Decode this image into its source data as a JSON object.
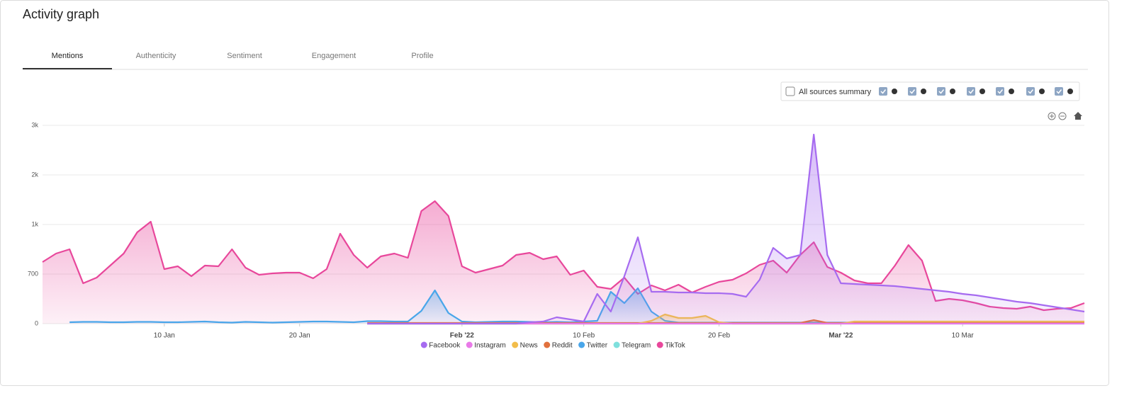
{
  "header": {
    "title": "Activity graph"
  },
  "tabs": [
    "Mentions",
    "Authenticity",
    "Sentiment",
    "Engagement",
    "Profile"
  ],
  "sources": {
    "label": "All sources summary"
  },
  "chart_data": {
    "type": "area",
    "x": [
      "2022-01-01",
      "2022-01-02",
      "2022-01-03",
      "2022-01-04",
      "2022-01-05",
      "2022-01-06",
      "2022-01-07",
      "2022-01-08",
      "2022-01-09",
      "2022-01-10",
      "2022-01-11",
      "2022-01-12",
      "2022-01-13",
      "2022-01-14",
      "2022-01-15",
      "2022-01-16",
      "2022-01-17",
      "2022-01-18",
      "2022-01-19",
      "2022-01-20",
      "2022-01-21",
      "2022-01-22",
      "2022-01-23",
      "2022-01-24",
      "2022-01-25",
      "2022-01-26",
      "2022-01-27",
      "2022-01-28",
      "2022-01-29",
      "2022-01-30",
      "2022-01-31",
      "2022-02-01",
      "2022-02-02",
      "2022-02-03",
      "2022-02-04",
      "2022-02-05",
      "2022-02-06",
      "2022-02-07",
      "2022-02-08",
      "2022-02-09",
      "2022-02-10",
      "2022-02-11",
      "2022-02-12",
      "2022-02-13",
      "2022-02-14",
      "2022-02-15",
      "2022-02-16",
      "2022-02-17",
      "2022-02-18",
      "2022-02-19",
      "2022-02-20",
      "2022-02-21",
      "2022-02-22",
      "2022-02-23",
      "2022-02-24",
      "2022-02-25",
      "2022-02-26",
      "2022-02-27",
      "2022-02-28",
      "2022-03-01",
      "2022-03-02",
      "2022-03-03",
      "2022-03-04",
      "2022-03-05",
      "2022-03-06",
      "2022-03-07",
      "2022-03-08",
      "2022-03-09",
      "2022-03-10",
      "2022-03-11",
      "2022-03-12",
      "2022-03-13",
      "2022-03-14",
      "2022-03-15",
      "2022-03-16",
      "2022-03-17",
      "2022-03-18",
      "2022-03-19"
    ],
    "xlim": [
      "2022-01-01",
      "2022-03-19"
    ],
    "xticks": [
      {
        "value": "2022-01-10",
        "label": "10 Jan"
      },
      {
        "value": "2022-01-20",
        "label": "20 Jan"
      },
      {
        "value": "2022-02-01",
        "label": "Feb '22"
      },
      {
        "value": "2022-02-10",
        "label": "10 Feb"
      },
      {
        "value": "2022-02-20",
        "label": "20 Feb"
      },
      {
        "value": "2022-03-01",
        "label": "Mar '22"
      },
      {
        "value": "2022-03-10",
        "label": "10 Mar"
      }
    ],
    "ylim": [
      0,
      2800
    ],
    "yticks": [
      0,
      700,
      {
        "value": 1400,
        "label": "1k"
      },
      {
        "value": 2100,
        "label": "2k"
      },
      {
        "value": 2800,
        "label": "3k"
      }
    ],
    "grid": true,
    "series": [
      {
        "name": "Facebook",
        "color": "#a66bf0",
        "values": [
          null,
          null,
          null,
          null,
          null,
          null,
          null,
          null,
          null,
          null,
          null,
          null,
          null,
          null,
          null,
          null,
          null,
          null,
          null,
          null,
          null,
          null,
          null,
          null,
          0,
          0,
          0,
          0,
          0,
          0,
          0,
          0,
          0,
          0,
          0,
          0,
          20,
          30,
          90,
          60,
          30,
          420,
          170,
          670,
          1220,
          450,
          450,
          440,
          440,
          430,
          430,
          420,
          380,
          620,
          1070,
          920,
          970,
          2670,
          970,
          570,
          560,
          550,
          540,
          530,
          510,
          490,
          470,
          450,
          420,
          400,
          370,
          340,
          310,
          290,
          260,
          230,
          200,
          170
        ]
      },
      {
        "name": "Instagram",
        "color": "#e97ae8",
        "values": [
          null,
          null,
          null,
          null,
          null,
          null,
          null,
          null,
          null,
          null,
          null,
          null,
          null,
          null,
          null,
          null,
          null,
          null,
          null,
          null,
          null,
          null,
          null,
          null,
          0,
          0,
          0,
          0,
          0,
          0,
          0,
          0,
          0,
          0,
          0,
          0,
          0,
          0,
          0,
          0,
          0,
          0,
          0,
          0,
          0,
          0,
          0,
          0,
          0,
          0,
          0,
          0,
          0,
          0,
          0,
          0,
          0,
          0,
          0,
          0,
          0,
          0,
          0,
          0,
          0,
          0,
          0,
          0,
          0,
          0,
          0,
          0,
          0,
          0,
          0,
          0,
          0,
          0
        ]
      },
      {
        "name": "News",
        "color": "#f2bd4b",
        "values": [
          null,
          null,
          null,
          null,
          null,
          null,
          null,
          null,
          null,
          null,
          null,
          null,
          null,
          null,
          null,
          null,
          null,
          null,
          null,
          null,
          null,
          null,
          null,
          null,
          0,
          0,
          0,
          0,
          0,
          0,
          0,
          0,
          0,
          0,
          0,
          0,
          0,
          0,
          0,
          0,
          0,
          0,
          0,
          0,
          0,
          40,
          130,
          80,
          80,
          110,
          20,
          0,
          0,
          0,
          0,
          0,
          0,
          0,
          0,
          0,
          30,
          30,
          30,
          30,
          30,
          30,
          30,
          30,
          30,
          30,
          30,
          30,
          30,
          30,
          30,
          30,
          30,
          30
        ]
      },
      {
        "name": "Reddit",
        "color": "#e1713d",
        "values": [
          null,
          null,
          null,
          null,
          null,
          null,
          null,
          null,
          null,
          null,
          null,
          null,
          null,
          null,
          null,
          null,
          null,
          null,
          null,
          null,
          null,
          null,
          null,
          null,
          10,
          10,
          10,
          10,
          10,
          10,
          10,
          10,
          10,
          10,
          10,
          10,
          10,
          10,
          10,
          10,
          10,
          10,
          10,
          10,
          10,
          10,
          10,
          10,
          10,
          10,
          10,
          10,
          10,
          10,
          10,
          10,
          10,
          50,
          10,
          10,
          10,
          10,
          10,
          10,
          10,
          10,
          10,
          10,
          10,
          10,
          10,
          10,
          10,
          10,
          10,
          10,
          10,
          10
        ]
      },
      {
        "name": "Twitter",
        "color": "#49a6ea",
        "values": [
          null,
          null,
          20,
          25,
          25,
          20,
          20,
          25,
          25,
          20,
          20,
          25,
          30,
          20,
          15,
          25,
          20,
          15,
          20,
          25,
          30,
          30,
          25,
          20,
          35,
          35,
          30,
          30,
          180,
          470,
          150,
          30,
          20,
          25,
          30,
          30,
          25,
          20,
          25,
          20,
          30,
          40,
          450,
          290,
          500,
          170,
          40,
          15,
          15,
          15,
          15,
          15,
          15,
          15,
          15,
          15,
          15,
          15,
          15,
          15,
          15,
          15,
          15,
          15,
          15,
          15,
          15,
          15,
          15,
          15,
          15,
          15,
          15,
          15,
          15,
          15,
          15,
          15
        ]
      },
      {
        "name": "Telegram",
        "color": "#7fe0dd",
        "values": [
          null,
          null,
          null,
          null,
          null,
          null,
          null,
          null,
          null,
          null,
          null,
          null,
          null,
          null,
          null,
          null,
          null,
          null,
          null,
          null,
          null,
          null,
          null,
          null,
          0,
          0,
          0,
          0,
          0,
          0,
          0,
          0,
          0,
          0,
          0,
          0,
          0,
          0,
          0,
          0,
          0,
          0,
          0,
          0,
          0,
          0,
          0,
          0,
          0,
          0,
          0,
          0,
          0,
          0,
          0,
          0,
          0,
          0,
          0,
          0,
          0,
          0,
          0,
          0,
          0,
          0,
          0,
          0,
          0,
          0,
          0,
          0,
          0,
          0,
          0,
          0,
          0,
          0
        ]
      },
      {
        "name": "TikTok",
        "color": "#e8479b",
        "values": [
          870,
          990,
          1050,
          570,
          650,
          820,
          990,
          1290,
          1440,
          770,
          810,
          670,
          820,
          810,
          1050,
          790,
          690,
          710,
          720,
          720,
          640,
          770,
          1270,
          970,
          790,
          950,
          990,
          930,
          1590,
          1730,
          1520,
          810,
          720,
          770,
          820,
          970,
          1000,
          910,
          950,
          690,
          750,
          520,
          490,
          650,
          420,
          540,
          470,
          550,
          440,
          520,
          590,
          620,
          710,
          830,
          890,
          720,
          970,
          1150,
          800,
          720,
          610,
          570,
          570,
          820,
          1110,
          890,
          320,
          350,
          330,
          290,
          240,
          220,
          210,
          240,
          190,
          210,
          220,
          290
        ]
      }
    ]
  }
}
